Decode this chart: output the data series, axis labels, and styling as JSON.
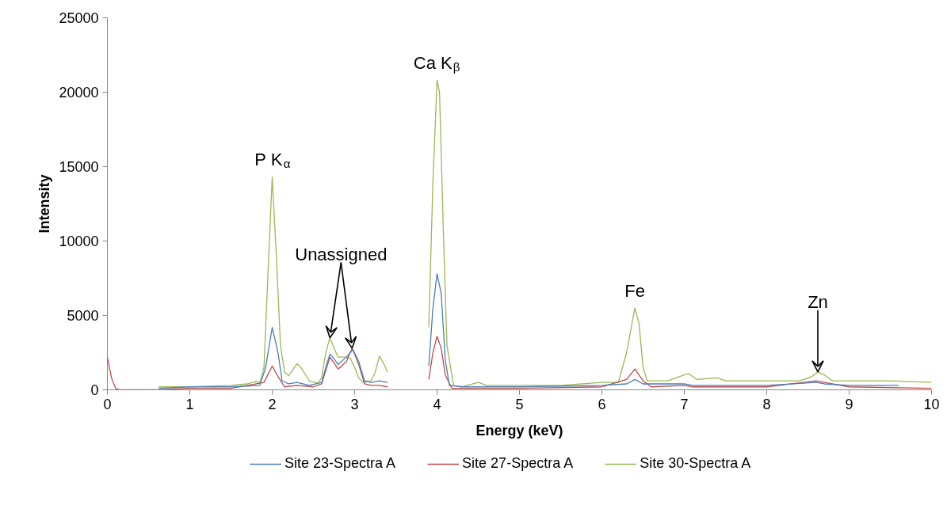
{
  "chart_data": {
    "type": "line",
    "xlabel": "Energy (keV)",
    "ylabel": "Intensity",
    "xlim": [
      0,
      10
    ],
    "xticks": [
      0,
      1,
      2,
      3,
      4,
      5,
      6,
      7,
      8,
      9,
      10
    ],
    "ylim": [
      0,
      25000
    ],
    "yticks": [
      0,
      5000,
      10000,
      15000,
      20000,
      25000
    ],
    "grid": false,
    "legend": "bottom",
    "marker": "none",
    "line_style": "solid",
    "annotations": [
      {
        "text": "P K$_{α}$",
        "x": 2,
        "y": 14300
      },
      {
        "text": "Unassigned",
        "x": 2.7,
        "y": 3500
      },
      {
        "text": "Ca K$_{β}$",
        "x": 4,
        "y": 20800
      },
      {
        "text": "Fe",
        "x": 6.4,
        "y": 5500
      },
      {
        "text": "Zn",
        "x": 8.62,
        "y": 1200
      }
    ],
    "series": [
      {
        "name": "Site 23-Spectra A",
        "color": "#4a7ebb",
        "x": [
          0.62,
          1.0,
          1.5,
          1.85,
          1.92,
          2.0,
          2.07,
          2.12,
          2.2,
          2.3,
          2.45,
          2.6,
          2.65,
          2.7,
          2.75,
          2.8,
          2.9,
          2.98,
          3.05,
          3.12,
          3.2,
          3.3,
          3.4,
          3.65,
          3.9,
          3.95,
          4.0,
          4.05,
          4.1,
          4.15,
          4.3,
          5.0,
          6.0,
          6.3,
          6.4,
          6.5,
          7.0,
          7.1,
          8.0,
          8.6,
          8.7,
          9.0,
          9.6
        ],
        "values": [
          100,
          200,
          200,
          300,
          1500,
          4200,
          2500,
          600,
          400,
          500,
          300,
          500,
          1500,
          2400,
          2100,
          1700,
          2200,
          2700,
          1900,
          600,
          500,
          600,
          500,
          null,
          1600,
          5500,
          7800,
          6500,
          2000,
          300,
          200,
          200,
          300,
          400,
          700,
          400,
          400,
          300,
          300,
          500,
          400,
          300,
          300
        ]
      },
      {
        "name": "Site 27-Spectra A",
        "color": "#be4b48",
        "x": [
          0,
          0.05,
          0.1,
          0.15,
          0.6,
          0.62,
          1.0,
          1.5,
          1.9,
          2.0,
          2.08,
          2.15,
          2.3,
          2.5,
          2.6,
          2.7,
          2.75,
          2.8,
          2.9,
          2.97,
          3.05,
          3.12,
          3.2,
          3.3,
          3.4,
          3.65,
          3.9,
          3.95,
          4.0,
          4.05,
          4.1,
          4.18,
          5.0,
          6.0,
          6.3,
          6.4,
          6.5,
          6.6,
          7.0,
          7.1,
          8.0,
          8.6,
          8.7,
          9.0,
          10.0
        ],
        "values": [
          2200,
          800,
          100,
          0,
          0,
          0,
          100,
          100,
          500,
          1600,
          800,
          200,
          300,
          200,
          400,
          2200,
          1800,
          1400,
          1900,
          2800,
          1700,
          400,
          300,
          300,
          200,
          null,
          700,
          2500,
          3600,
          2800,
          1000,
          100,
          100,
          200,
          700,
          1400,
          600,
          200,
          300,
          200,
          200,
          600,
          500,
          200,
          100
        ]
      },
      {
        "name": "Site 30-Spectra A",
        "color": "#98b954",
        "x": [
          0.62,
          1.0,
          1.5,
          1.7,
          1.8,
          1.85,
          1.9,
          1.95,
          2.0,
          2.05,
          2.1,
          2.15,
          2.2,
          2.3,
          2.35,
          2.45,
          2.55,
          2.6,
          2.65,
          2.7,
          2.75,
          2.8,
          2.9,
          2.95,
          3.0,
          3.05,
          3.1,
          3.2,
          3.25,
          3.3,
          3.35,
          3.4,
          3.65,
          3.9,
          3.95,
          4.0,
          4.03,
          4.08,
          4.12,
          4.2,
          4.3,
          4.5,
          4.6,
          5.0,
          5.5,
          6.0,
          6.2,
          6.3,
          6.4,
          6.45,
          6.5,
          6.55,
          6.8,
          7.0,
          7.05,
          7.15,
          7.4,
          7.5,
          8.0,
          8.4,
          8.55,
          8.62,
          8.7,
          8.8,
          9.0,
          9.5,
          10.0
        ],
        "values": [
          200,
          200,
          300,
          400,
          550,
          500,
          1500,
          8000,
          14300,
          9000,
          3000,
          1200,
          950,
          1750,
          1500,
          600,
          450,
          800,
          2500,
          3500,
          2800,
          2200,
          2200,
          2100,
          1500,
          800,
          500,
          600,
          1200,
          2250,
          1800,
          1200,
          null,
          4200,
          14000,
          20800,
          20000,
          10000,
          3000,
          300,
          200,
          500,
          300,
          300,
          300,
          500,
          500,
          2500,
          5500,
          4500,
          1500,
          600,
          600,
          1000,
          1100,
          700,
          800,
          600,
          600,
          600,
          900,
          1200,
          1000,
          600,
          600,
          600,
          500
        ]
      }
    ]
  }
}
